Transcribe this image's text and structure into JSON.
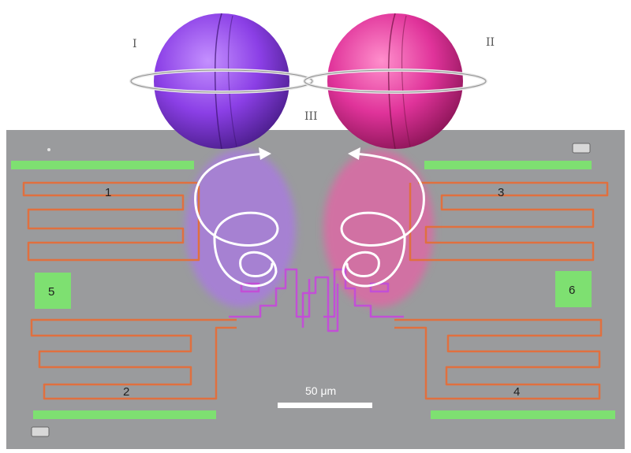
{
  "figure": {
    "roman_labels": [
      "I",
      "II",
      "III"
    ],
    "resonator_labels": [
      "1",
      "2",
      "3",
      "4"
    ],
    "pad_labels": [
      "5",
      "6"
    ],
    "scale_bar_label": "50 μm"
  },
  "colors": {
    "chip": "#9a9b9d",
    "resonator": "#e0703f",
    "pads": "#7ee071",
    "sphere_left": "#8b3fe6",
    "sphere_right": "#e0339a",
    "spin_arrows": "#ffffff",
    "glow_left": "#b06cff",
    "glow_right": "#ff4fa8"
  }
}
